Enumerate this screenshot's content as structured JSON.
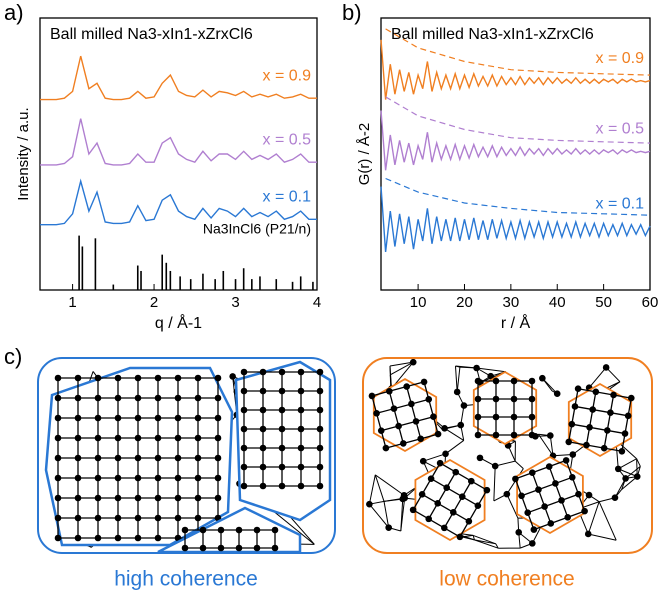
{
  "panel_labels": [
    "a)",
    "b)",
    "c)"
  ],
  "chart_data": [
    {
      "type": "line",
      "title": "Ball milled Na3-xIn1-xZrxCl6",
      "x_label": "q / Å-1",
      "y_label": "Intensity / a.u.",
      "x": [
        0.6,
        0.7,
        0.8,
        0.9,
        1.0,
        1.1,
        1.2,
        1.3,
        1.4,
        1.5,
        1.6,
        1.7,
        1.8,
        1.9,
        2.0,
        2.1,
        2.2,
        2.3,
        2.4,
        2.5,
        2.6,
        2.7,
        2.8,
        2.9,
        3.0,
        3.1,
        3.2,
        3.3,
        3.4,
        3.5,
        3.6,
        3.7,
        3.8,
        3.9,
        4.0
      ],
      "xlim": [
        0.6,
        4.0
      ],
      "xticks": [
        1,
        2,
        3,
        4
      ],
      "ylim": [
        0,
        10
      ],
      "series": [
        {
          "name": "x = 0.9",
          "color": "#f07f21",
          "values": [
            7.0,
            7.0,
            7.0,
            7.05,
            7.3,
            8.6,
            7.4,
            7.6,
            7.05,
            7.0,
            7.0,
            7.05,
            7.3,
            7.05,
            7.1,
            7.6,
            7.9,
            7.3,
            7.15,
            7.1,
            7.35,
            7.1,
            7.3,
            7.25,
            7.15,
            7.3,
            7.1,
            7.2,
            7.1,
            7.2,
            7.05,
            7.1,
            7.2,
            7.05,
            7.05
          ]
        },
        {
          "name": "x = 0.5",
          "color": "#b07fd0",
          "values": [
            4.6,
            4.6,
            4.6,
            4.65,
            4.9,
            6.3,
            5.0,
            5.4,
            4.65,
            4.6,
            4.6,
            4.65,
            5.0,
            4.7,
            4.7,
            5.4,
            5.6,
            5.0,
            4.8,
            4.7,
            5.1,
            4.75,
            5.0,
            5.0,
            4.8,
            5.1,
            4.8,
            4.95,
            4.8,
            5.0,
            4.7,
            4.8,
            5.0,
            4.7,
            4.7
          ]
        },
        {
          "name": "x = 0.1",
          "color": "#2a78d4",
          "values": [
            2.4,
            2.4,
            2.4,
            2.45,
            2.8,
            4.0,
            2.9,
            3.6,
            2.5,
            2.45,
            2.45,
            2.5,
            3.1,
            2.55,
            2.6,
            3.3,
            3.5,
            2.9,
            2.7,
            2.6,
            3.0,
            2.65,
            3.0,
            2.9,
            2.7,
            3.0,
            2.7,
            2.85,
            2.7,
            2.9,
            2.6,
            2.7,
            2.9,
            2.6,
            2.6
          ]
        }
      ],
      "reference": {
        "name": "Na3InCl6 (P21/n)",
        "color": "#000000",
        "x": [
          1.08,
          1.12,
          1.28,
          1.5,
          1.8,
          1.84,
          2.1,
          2.15,
          2.2,
          2.32,
          2.45,
          2.6,
          2.75,
          2.85,
          3.0,
          3.1,
          3.2,
          3.3,
          3.5,
          3.7,
          3.8,
          3.95
        ],
        "values": [
          2.0,
          1.6,
          1.9,
          0.2,
          0.9,
          0.7,
          1.3,
          1.0,
          0.7,
          0.5,
          0.4,
          0.6,
          0.4,
          0.7,
          0.4,
          0.8,
          0.4,
          0.5,
          0.4,
          0.3,
          0.5,
          0.3
        ]
      }
    },
    {
      "type": "line",
      "title": "Ball milled Na3-xIn1-xZrxCl6",
      "x_label": "r / Å",
      "y_label": "G(r) / Å-2",
      "x": [
        2,
        3,
        4,
        5,
        6,
        7,
        8,
        9,
        10,
        11,
        12,
        13,
        14,
        15,
        16,
        17,
        18,
        19,
        20,
        21,
        22,
        23,
        24,
        25,
        26,
        27,
        28,
        29,
        30,
        31,
        32,
        33,
        34,
        35,
        36,
        37,
        38,
        39,
        40,
        41,
        42,
        43,
        44,
        45,
        46,
        47,
        48,
        49,
        50,
        51,
        52,
        53,
        54,
        55,
        56,
        57,
        58,
        59,
        60
      ],
      "xlim": [
        2,
        60
      ],
      "xticks": [
        10,
        20,
        30,
        40,
        50,
        60
      ],
      "ylim": [
        0,
        10
      ],
      "envelope_x": [
        3,
        10,
        20,
        30,
        40,
        50,
        60
      ],
      "series": [
        {
          "name": "x = 0.9",
          "color": "#f07f21",
          "values": [
            9.2,
            7.0,
            8.3,
            7.2,
            8.1,
            7.3,
            8.0,
            7.2,
            7.9,
            7.4,
            8.4,
            7.3,
            8.0,
            7.4,
            7.9,
            7.4,
            7.95,
            7.4,
            7.9,
            7.45,
            7.95,
            7.5,
            7.85,
            7.5,
            7.9,
            7.5,
            7.85,
            7.55,
            7.8,
            7.55,
            7.85,
            7.55,
            7.8,
            7.6,
            7.8,
            7.55,
            7.8,
            7.6,
            7.8,
            7.6,
            7.75,
            7.6,
            7.8,
            7.6,
            7.75,
            7.6,
            7.75,
            7.6,
            7.75,
            7.65,
            7.75,
            7.6,
            7.75,
            7.65,
            7.75,
            7.65,
            7.7,
            7.65,
            7.7
          ],
          "envelope": [
            9.6,
            8.9,
            8.4,
            8.1,
            8.0,
            7.95,
            7.9
          ]
        },
        {
          "name": "x = 0.5",
          "color": "#b07fd0",
          "values": [
            6.6,
            4.4,
            5.7,
            4.6,
            5.5,
            4.7,
            5.4,
            4.6,
            5.3,
            4.8,
            5.8,
            4.7,
            5.4,
            4.8,
            5.3,
            4.8,
            5.35,
            4.8,
            5.3,
            4.85,
            5.35,
            4.9,
            5.25,
            4.9,
            5.3,
            4.9,
            5.25,
            4.95,
            5.2,
            4.95,
            5.25,
            4.95,
            5.2,
            5.0,
            5.2,
            4.95,
            5.2,
            5.0,
            5.2,
            5.0,
            5.15,
            5.0,
            5.2,
            5.0,
            5.15,
            5.0,
            5.15,
            5.0,
            5.15,
            5.05,
            5.15,
            5.0,
            5.15,
            5.05,
            5.15,
            5.05,
            5.1,
            5.05,
            5.1
          ],
          "envelope": [
            7.1,
            6.4,
            5.9,
            5.6,
            5.5,
            5.45,
            5.4
          ]
        },
        {
          "name": "x = 0.1",
          "color": "#2a78d4",
          "values": [
            3.8,
            1.4,
            2.9,
            1.6,
            2.8,
            1.7,
            2.7,
            1.5,
            2.6,
            1.8,
            3.0,
            1.7,
            2.7,
            1.8,
            2.6,
            1.8,
            2.65,
            1.8,
            2.6,
            1.85,
            2.65,
            1.85,
            2.55,
            1.85,
            2.6,
            1.9,
            2.55,
            1.9,
            2.5,
            1.9,
            2.55,
            1.9,
            2.5,
            1.95,
            2.5,
            1.9,
            2.5,
            1.95,
            2.5,
            1.95,
            2.45,
            1.95,
            2.5,
            1.95,
            2.45,
            2.0,
            2.45,
            1.95,
            2.45,
            2.0,
            2.4,
            2.0,
            2.45,
            2.0,
            2.4,
            2.05,
            2.4,
            2.0,
            2.35
          ],
          "envelope": [
            4.1,
            3.6,
            3.2,
            3.0,
            2.85,
            2.8,
            2.75
          ]
        }
      ]
    }
  ],
  "diagram": {
    "left_label": "high coherence",
    "left_color": "#2a78d4",
    "right_label": "low coherence",
    "right_color": "#f07f21"
  }
}
